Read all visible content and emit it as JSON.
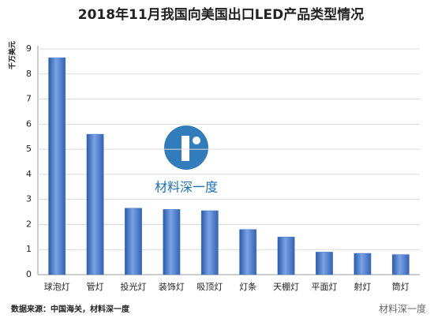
{
  "chart_data": {
    "type": "bar",
    "title": "2018年11月我国向美国出口LED产品类型情况",
    "y_label": "千万美元",
    "source": "数据来源：中国海关，材料深一度",
    "watermark": "材料深一度",
    "footer_watermark": "材料深一度",
    "categories": [
      "球泡灯",
      "管灯",
      "投光灯",
      "装饰灯",
      "吸顶灯",
      "灯条",
      "天棚灯",
      "平面灯",
      "射灯",
      "筒灯"
    ],
    "values": [
      8.65,
      5.6,
      2.65,
      2.6,
      2.55,
      1.8,
      1.5,
      0.9,
      0.85,
      0.8
    ],
    "color": "#3f73c4",
    "ylim": [
      0,
      9
    ],
    "yticks": [
      0,
      1,
      2,
      3,
      4,
      5,
      6,
      7,
      8,
      9
    ],
    "grid": true
  }
}
